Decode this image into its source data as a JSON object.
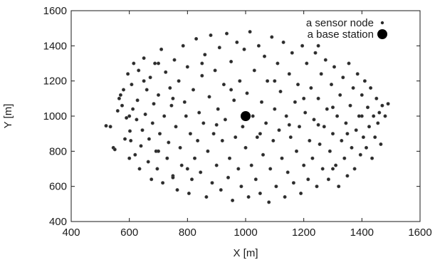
{
  "chart_data": {
    "type": "scatter",
    "title": "",
    "xlabel": "X [m]",
    "ylabel": "Y [m]",
    "xlim": [
      400,
      1600
    ],
    "ylim": [
      400,
      1600
    ],
    "xticks": [
      "400",
      "600",
      "800",
      "1000",
      "1200",
      "1400",
      "1600"
    ],
    "yticks": [
      "400",
      "600",
      "800",
      "1000",
      "1200",
      "1400",
      "1600"
    ],
    "grid": false,
    "legend_position": "top-right",
    "series": [
      {
        "name": "a sensor node",
        "color": "#2a2a2a",
        "marker": "small-circle",
        "points": [
          [
            520,
            945
          ],
          [
            535,
            940
          ],
          [
            545,
            820
          ],
          [
            550,
            810
          ],
          [
            560,
            1030
          ],
          [
            565,
            1100
          ],
          [
            570,
            1120
          ],
          [
            575,
            1060
          ],
          [
            580,
            1150
          ],
          [
            585,
            870
          ],
          [
            590,
            990
          ],
          [
            595,
            1240
          ],
          [
            600,
            760
          ],
          [
            602,
            915
          ],
          [
            605,
            860
          ],
          [
            608,
            1180
          ],
          [
            612,
            1040
          ],
          [
            615,
            1300
          ],
          [
            620,
            780
          ],
          [
            625,
            980
          ],
          [
            628,
            1090
          ],
          [
            632,
            1260
          ],
          [
            635,
            700
          ],
          [
            640,
            830
          ],
          [
            645,
            920
          ],
          [
            650,
            1330
          ],
          [
            655,
            1010
          ],
          [
            660,
            1150
          ],
          [
            665,
            740
          ],
          [
            668,
            870
          ],
          [
            672,
            1220
          ],
          [
            676,
            640
          ],
          [
            680,
            960
          ],
          [
            684,
            1070
          ],
          [
            688,
            1300
          ],
          [
            692,
            800
          ],
          [
            696,
            700
          ],
          [
            700,
            1120
          ],
          [
            705,
            900
          ],
          [
            710,
            1380
          ],
          [
            715,
            620
          ],
          [
            720,
            1000
          ],
          [
            725,
            1250
          ],
          [
            730,
            760
          ],
          [
            735,
            850
          ],
          [
            740,
            1160
          ],
          [
            745,
            1060
          ],
          [
            750,
            660
          ],
          [
            755,
            1320
          ],
          [
            760,
            940
          ],
          [
            765,
            580
          ],
          [
            770,
            1200
          ],
          [
            775,
            820
          ],
          [
            780,
            720
          ],
          [
            785,
            1400
          ],
          [
            790,
            1080
          ],
          [
            795,
            1000
          ],
          [
            800,
            1280
          ],
          [
            805,
            560
          ],
          [
            810,
            900
          ],
          [
            815,
            640
          ],
          [
            820,
            1150
          ],
          [
            825,
            760
          ],
          [
            830,
            1440
          ],
          [
            835,
            860
          ],
          [
            840,
            1020
          ],
          [
            845,
            680
          ],
          [
            850,
            1230
          ],
          [
            855,
            960
          ],
          [
            860,
            1350
          ],
          [
            865,
            540
          ],
          [
            870,
            800
          ],
          [
            875,
            1110
          ],
          [
            880,
            1460
          ],
          [
            885,
            620
          ],
          [
            890,
            900
          ],
          [
            895,
            1260
          ],
          [
            900,
            720
          ],
          [
            905,
            1040
          ],
          [
            910,
            1390
          ],
          [
            915,
            580
          ],
          [
            920,
            860
          ],
          [
            925,
            1180
          ],
          [
            930,
            980
          ],
          [
            935,
            1470
          ],
          [
            940,
            650
          ],
          [
            945,
            760
          ],
          [
            950,
            1310
          ],
          [
            955,
            520
          ],
          [
            960,
            1090
          ],
          [
            965,
            880
          ],
          [
            970,
            1420
          ],
          [
            975,
            700
          ],
          [
            980,
            1200
          ],
          [
            985,
            600
          ],
          [
            990,
            940
          ],
          [
            995,
            1380
          ],
          [
            1000,
            820
          ],
          [
            1005,
            1130
          ],
          [
            1010,
            540
          ],
          [
            1015,
            1480
          ],
          [
            1020,
            720
          ],
          [
            1025,
            1000
          ],
          [
            1030,
            1260
          ],
          [
            1035,
            640
          ],
          [
            1040,
            880
          ],
          [
            1045,
            1400
          ],
          [
            1050,
            560
          ],
          [
            1055,
            1080
          ],
          [
            1060,
            780
          ],
          [
            1065,
            1340
          ],
          [
            1070,
            960
          ],
          [
            1075,
            1200
          ],
          [
            1080,
            510
          ],
          [
            1085,
            700
          ],
          [
            1090,
            1450
          ],
          [
            1095,
            860
          ],
          [
            1100,
            1040
          ],
          [
            1105,
            600
          ],
          [
            1110,
            1300
          ],
          [
            1115,
            920
          ],
          [
            1120,
            1140
          ],
          [
            1125,
            760
          ],
          [
            1130,
            1420
          ],
          [
            1135,
            540
          ],
          [
            1140,
            1000
          ],
          [
            1145,
            680
          ],
          [
            1150,
            1240
          ],
          [
            1155,
            880
          ],
          [
            1160,
            1360
          ],
          [
            1165,
            620
          ],
          [
            1170,
            1080
          ],
          [
            1175,
            800
          ],
          [
            1180,
            1180
          ],
          [
            1185,
            940
          ],
          [
            1190,
            560
          ],
          [
            1195,
            1400
          ],
          [
            1200,
            720
          ],
          [
            1205,
            1020
          ],
          [
            1210,
            1300
          ],
          [
            1215,
            640
          ],
          [
            1220,
            860
          ],
          [
            1225,
            1160
          ],
          [
            1230,
            760
          ],
          [
            1235,
            980
          ],
          [
            1240,
            1360
          ],
          [
            1245,
            600
          ],
          [
            1250,
            1100
          ],
          [
            1255,
            840
          ],
          [
            1260,
            1240
          ],
          [
            1265,
            700
          ],
          [
            1270,
            940
          ],
          [
            1275,
            1320
          ],
          [
            1280,
            1040
          ],
          [
            1285,
            640
          ],
          [
            1290,
            800
          ],
          [
            1295,
            1180
          ],
          [
            1300,
            900
          ],
          [
            1305,
            1280
          ],
          [
            1310,
            720
          ],
          [
            1315,
            1000
          ],
          [
            1320,
            600
          ],
          [
            1325,
            1120
          ],
          [
            1330,
            860
          ],
          [
            1335,
            1220
          ],
          [
            1340,
            760
          ],
          [
            1345,
            960
          ],
          [
            1350,
            660
          ],
          [
            1355,
            1300
          ],
          [
            1360,
            1060
          ],
          [
            1365,
            820
          ],
          [
            1370,
            1160
          ],
          [
            1375,
            700
          ],
          [
            1380,
            920
          ],
          [
            1385,
            1240
          ],
          [
            1390,
            1000
          ],
          [
            1395,
            780
          ],
          [
            1400,
            1120
          ],
          [
            1405,
            880
          ],
          [
            1410,
            1200
          ],
          [
            1415,
            820
          ],
          [
            1420,
            1050
          ],
          [
            1425,
            940
          ],
          [
            1430,
            1160
          ],
          [
            1435,
            760
          ],
          [
            1440,
            1000
          ],
          [
            1445,
            880
          ],
          [
            1450,
            1100
          ],
          [
            1455,
            960
          ],
          [
            1460,
            1020
          ],
          [
            1465,
            840
          ],
          [
            1470,
            1060
          ],
          [
            1480,
            1000
          ],
          [
            1490,
            1070
          ],
          [
            600,
            1000
          ],
          [
            650,
            1200
          ],
          [
            700,
            800
          ],
          [
            750,
            1100
          ],
          [
            800,
            700
          ],
          [
            850,
            1300
          ],
          [
            900,
            950
          ],
          [
            950,
            1150
          ],
          [
            1050,
            900
          ],
          [
            1100,
            1200
          ],
          [
            1150,
            950
          ],
          [
            1200,
            1100
          ],
          [
            1250,
            950
          ],
          [
            1300,
            1050
          ],
          [
            1350,
            900
          ],
          [
            1400,
            1000
          ],
          [
            700,
            1300
          ],
          [
            1300,
            700
          ],
          [
            750,
            650
          ],
          [
            1250,
            1400
          ]
        ]
      },
      {
        "name": "a base station",
        "color": "#000000",
        "marker": "large-circle",
        "points": [
          [
            1000,
            1000
          ]
        ]
      }
    ]
  }
}
